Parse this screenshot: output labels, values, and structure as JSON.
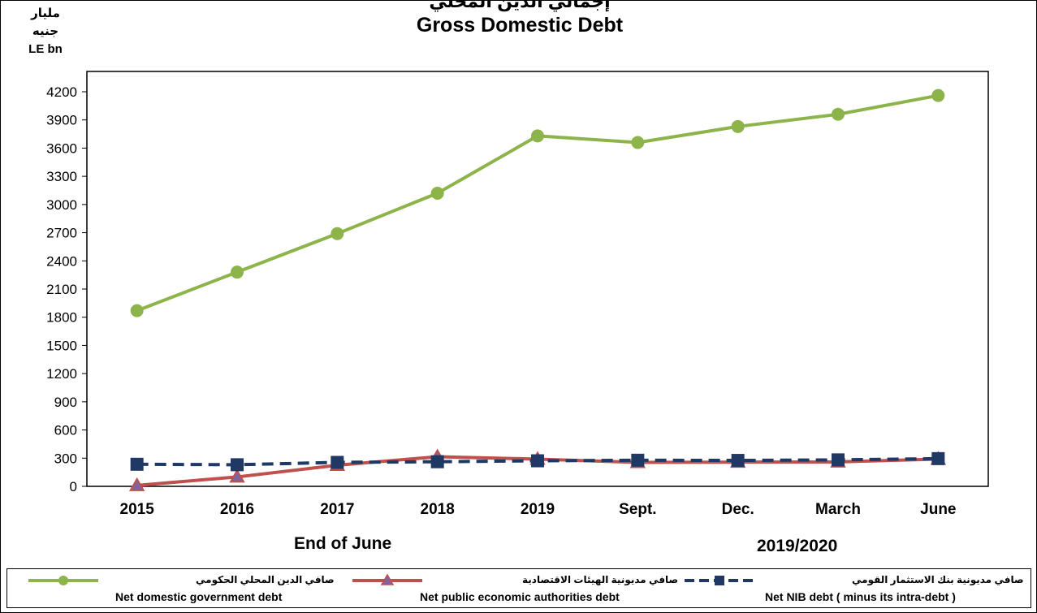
{
  "header": {
    "unit_ar": "مليار جنيه",
    "unit_en": "LE bn",
    "title_ar": "إجمالي الدين المحلي",
    "title_en": "Gross Domestic Debt"
  },
  "groups": {
    "left": "End of June",
    "right": "2019/2020"
  },
  "colors": {
    "green": "#8db44a",
    "red": "#c0504d",
    "blue": "#1f3864"
  },
  "chart_data": {
    "type": "line",
    "title": "Gross Domestic Debt",
    "ylabel": "LE bn",
    "ylim": [
      0,
      4200
    ],
    "yticks": [
      0,
      300,
      600,
      900,
      1200,
      1500,
      1800,
      2100,
      2400,
      2700,
      3000,
      3300,
      3600,
      3900,
      4200
    ],
    "categories": [
      "2015",
      "2016",
      "2017",
      "2018",
      "2019",
      "Sept.",
      "Dec.",
      "March",
      "June"
    ],
    "series": [
      {
        "name": "Net domestic government debt",
        "name_ar": "صافي الدين المحلي الحكومي",
        "marker": "circle",
        "style": "solid",
        "values": [
          1870,
          2280,
          2690,
          3120,
          3730,
          3660,
          3830,
          3960,
          4160
        ]
      },
      {
        "name": "Net public economic authorities debt",
        "name_ar": "صافي مديونية الهيئات الاقتصادية",
        "marker": "triangle",
        "style": "solid",
        "values": [
          10,
          100,
          225,
          315,
          290,
          255,
          258,
          260,
          290
        ]
      },
      {
        "name": "Net NIB debt ( minus its intra-debt )",
        "name_ar": "صافي مديونية بنك الاستثمار القومي",
        "marker": "square",
        "style": "dashed",
        "values": [
          235,
          230,
          255,
          262,
          272,
          278,
          276,
          282,
          295
        ]
      }
    ]
  }
}
